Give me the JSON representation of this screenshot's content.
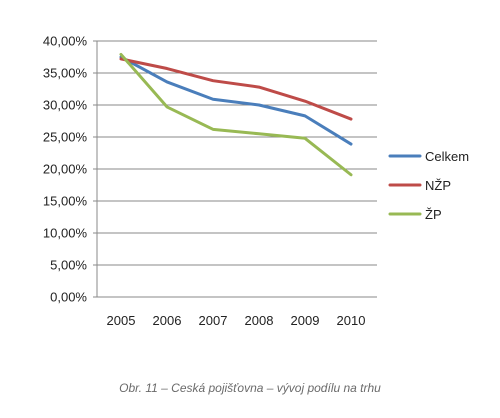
{
  "chart_data": {
    "type": "line",
    "categories": [
      "2005",
      "2006",
      "2007",
      "2008",
      "2009",
      "2010"
    ],
    "series": [
      {
        "name": "Celkem",
        "color": "#4a7ebb",
        "values": [
          37.5,
          33.6,
          30.9,
          30.0,
          28.3,
          23.9
        ]
      },
      {
        "name": "NŽP",
        "color": "#be4b48",
        "values": [
          37.2,
          35.7,
          33.8,
          32.8,
          30.6,
          27.8
        ]
      },
      {
        "name": "ŽP",
        "color": "#98b954",
        "values": [
          37.9,
          29.7,
          26.2,
          25.5,
          24.8,
          19.1
        ]
      }
    ],
    "ylim": [
      0,
      40
    ],
    "y_ticks": [
      "0,00%",
      "5,00%",
      "10,00%",
      "15,00%",
      "20,00%",
      "25,00%",
      "30,00%",
      "35,00%",
      "40,00%"
    ],
    "grid": true,
    "legend": "right",
    "xlabel": "",
    "ylabel": ""
  },
  "caption": "Obr. 11 – Ceská pojišťovna – vývoj podílu na trhu"
}
